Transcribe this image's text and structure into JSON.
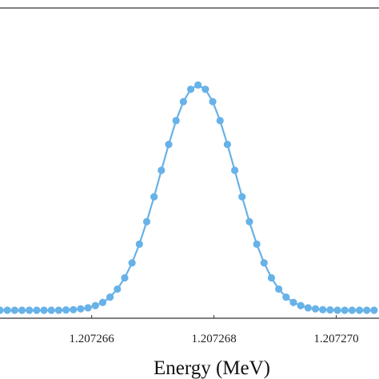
{
  "chart_data": {
    "type": "line",
    "title": "",
    "xlabel": "Energy (MeV)",
    "ylabel": "",
    "xlim": [
      1.2072645,
      1.2072707
    ],
    "ylim": [
      -0.03,
      1.13
    ],
    "grid": false,
    "legend": "none",
    "x_ticks": [
      1.207266,
      1.207268,
      1.20727
    ],
    "x_tick_labels": [
      "1.207266",
      "1.207268",
      "1.207270"
    ],
    "series": [
      {
        "color": "#67b2e8",
        "marker": "circle",
        "x": [
          1.2072645,
          1.20726462,
          1.20726474,
          1.20726486,
          1.20726498,
          1.2072651,
          1.20726522,
          1.20726534,
          1.20726546,
          1.20726558,
          1.2072657,
          1.20726582,
          1.20726594,
          1.20726606,
          1.20726618,
          1.2072663,
          1.20726642,
          1.20726654,
          1.20726666,
          1.20726678,
          1.2072669,
          1.20726702,
          1.20726714,
          1.20726726,
          1.20726738,
          1.2072675,
          1.20726762,
          1.20726774,
          1.20726786,
          1.20726798,
          1.2072681,
          1.20726822,
          1.20726834,
          1.20726846,
          1.20726858,
          1.2072687,
          1.20726882,
          1.20726894,
          1.20726906,
          1.20726918,
          1.2072693,
          1.20726942,
          1.20726954,
          1.20726966,
          1.20726978,
          1.2072699,
          1.20727002,
          1.20727014,
          1.20727026,
          1.20727038,
          1.2072705,
          1.20727062
        ],
        "y": [
          0.0,
          0.0,
          0.0,
          0.0,
          0.0,
          0.0,
          0.0,
          0.0,
          0.0,
          0.001,
          0.002,
          0.005,
          0.009,
          0.017,
          0.029,
          0.049,
          0.079,
          0.121,
          0.177,
          0.247,
          0.331,
          0.424,
          0.523,
          0.62,
          0.709,
          0.78,
          0.826,
          0.842,
          0.826,
          0.78,
          0.709,
          0.62,
          0.523,
          0.424,
          0.331,
          0.247,
          0.177,
          0.121,
          0.079,
          0.049,
          0.029,
          0.017,
          0.009,
          0.005,
          0.002,
          0.001,
          0.0,
          0.0,
          0.0,
          0.0,
          0.0,
          0.0
        ]
      }
    ]
  }
}
